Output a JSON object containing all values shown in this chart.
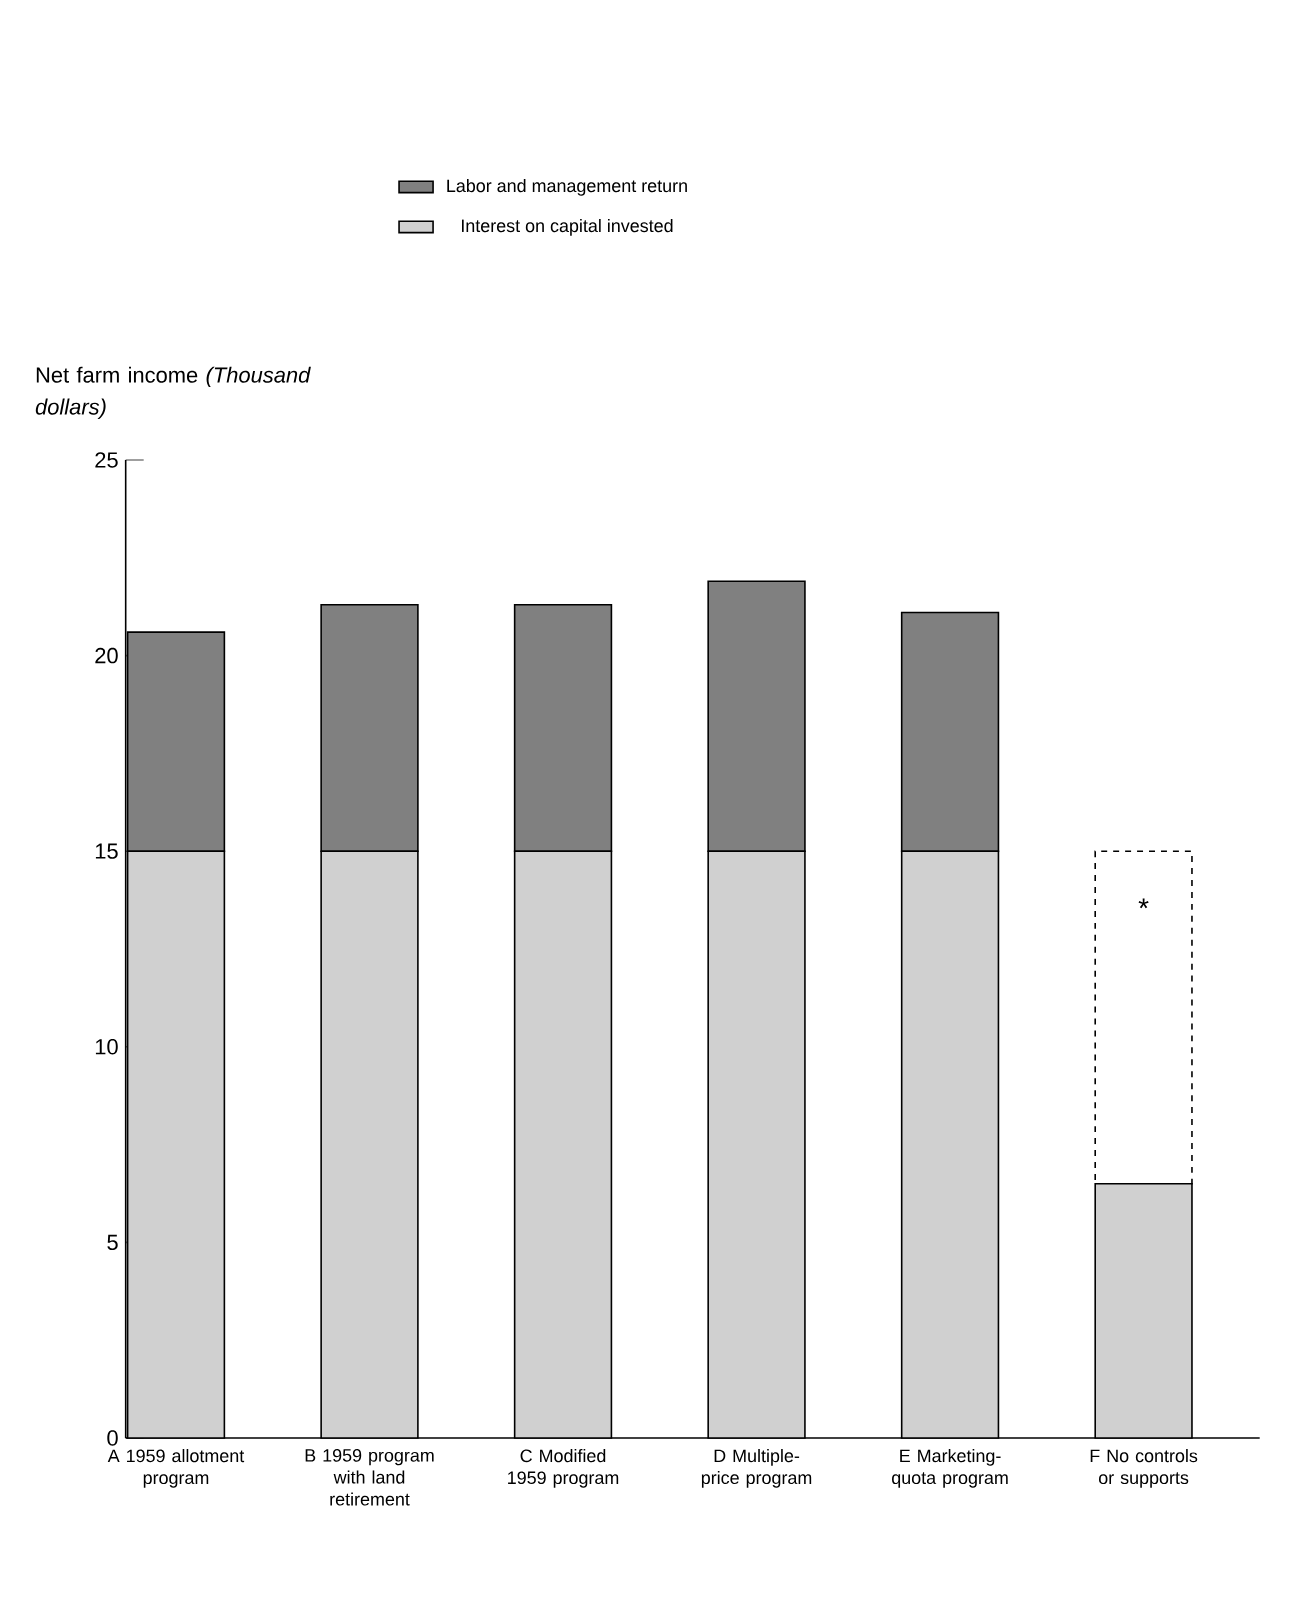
{
  "chart_data": {
    "type": "bar",
    "stacked": true,
    "ylabel": "Net farm income *(Thousand dollars)*",
    "categories": [
      "A 1959 allotment program",
      "B 1959 program with land retirement",
      "C Modified 1959 program",
      "D Multiple-price program",
      "E Marketing-quota program",
      "F No controls or supports"
    ],
    "series": [
      {
        "name": "Interest on capital invested",
        "color": "#d0d0d0",
        "values": [
          15,
          15,
          15,
          15,
          15,
          6.5
        ]
      },
      {
        "name": "Labor and management return",
        "color": "#808080",
        "values": [
          5.6,
          6.3,
          6.3,
          6.9,
          6.1,
          null
        ]
      },
      {
        "color": "#000000",
        "line_style": "dashed",
        "values": [
          null,
          null,
          null,
          null,
          null,
          8.5
        ]
      }
    ],
    "annotations": [
      "*"
    ],
    "ylim": [
      0,
      25
    ],
    "yticks": [
      0,
      5,
      10,
      15,
      20,
      25
    ],
    "legend": "top"
  }
}
